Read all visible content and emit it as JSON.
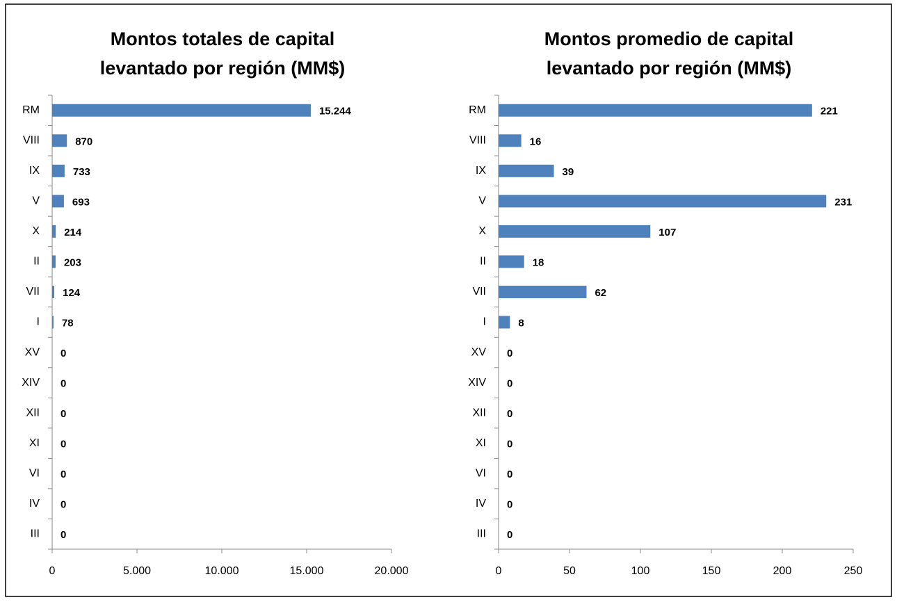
{
  "chart_data": [
    {
      "type": "bar",
      "orientation": "horizontal",
      "title": "Montos totales de capital levantado por región (MM$)",
      "categories": [
        "RM",
        "VIII",
        "IX",
        "V",
        "X",
        "II",
        "VII",
        "I",
        "XV",
        "XIV",
        "XII",
        "XI",
        "VI",
        "IV",
        "III"
      ],
      "values": [
        15244,
        870,
        733,
        693,
        214,
        203,
        124,
        78,
        0,
        0,
        0,
        0,
        0,
        0,
        0
      ],
      "value_labels": [
        "15.244",
        "870",
        "733",
        "693",
        "214",
        "203",
        "124",
        "78",
        "0",
        "0",
        "0",
        "0",
        "0",
        "0",
        "0"
      ],
      "color": "#4f81bd",
      "xlim": [
        0,
        20000
      ],
      "xticks": [
        0,
        {
          "value": 5000,
          "label": "5.000"
        },
        {
          "value": 10000,
          "label": "10.000"
        },
        {
          "value": 15000,
          "label": "15.000"
        },
        {
          "value": 20000,
          "label": "20.000"
        }
      ],
      "grid": false
    },
    {
      "type": "bar",
      "orientation": "horizontal",
      "title": "Montos promedio de capital levantado por región (MM$)",
      "categories": [
        "RM",
        "VIII",
        "IX",
        "V",
        "X",
        "II",
        "VII",
        "I",
        "XV",
        "XIV",
        "XII",
        "XI",
        "VI",
        "IV",
        "III"
      ],
      "values": [
        221,
        16,
        39,
        231,
        107,
        18,
        62,
        8,
        0,
        0,
        0,
        0,
        0,
        0,
        0
      ],
      "color": "#4f81bd",
      "xlim": [
        0,
        250
      ],
      "xticks": [
        0,
        50,
        100,
        150,
        200,
        250
      ],
      "grid": false
    }
  ]
}
